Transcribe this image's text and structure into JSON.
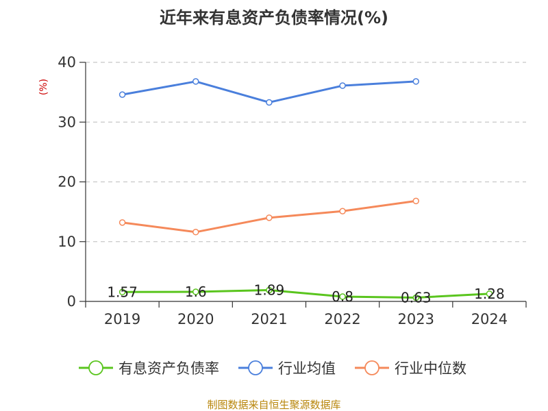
{
  "chart_data": {
    "type": "line",
    "title": "近年来有息资产负债率情况(%)",
    "ylabel": "(%)",
    "xlabel": "",
    "ylim": [
      0,
      40
    ],
    "yticks": [
      0,
      10,
      20,
      30,
      40
    ],
    "grid": true,
    "legend_position": "bottom",
    "categories": [
      "2019",
      "2020",
      "2021",
      "2022",
      "2023",
      "2024"
    ],
    "series": [
      {
        "name": "有息资产负债率",
        "color": "#5ac51e",
        "values": [
          1.57,
          1.6,
          1.89,
          0.8,
          0.63,
          1.28
        ],
        "data_labels": [
          "1.57",
          "1.6",
          "1.89",
          "0.8",
          "0.63",
          "1.28"
        ]
      },
      {
        "name": "行业均值",
        "color": "#4a7fdc",
        "values": [
          34.6,
          36.8,
          33.3,
          36.1,
          36.8,
          null
        ]
      },
      {
        "name": "行业中位数",
        "color": "#f5895a",
        "values": [
          13.2,
          11.6,
          14.0,
          15.1,
          16.8,
          null
        ]
      }
    ]
  },
  "source": "制图数据来自恒生聚源数据库"
}
